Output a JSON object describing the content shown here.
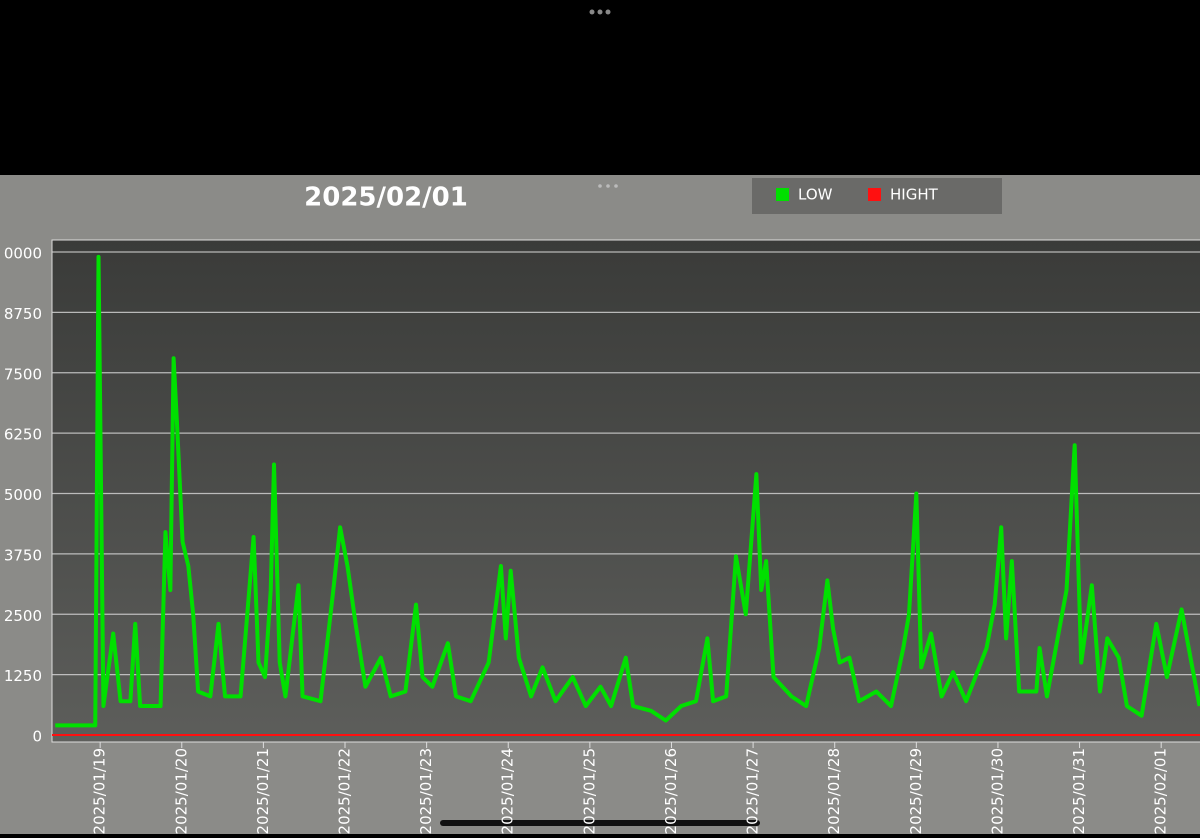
{
  "chart_data": {
    "type": "line",
    "title": "2025/02/01",
    "xlim": [
      -0.59,
      13.5
    ],
    "xticks": [
      {
        "value": 0,
        "label": "2025/01/19"
      },
      {
        "value": 1,
        "label": "2025/01/20"
      },
      {
        "value": 2,
        "label": "2025/01/21"
      },
      {
        "value": 3,
        "label": "2025/01/22"
      },
      {
        "value": 4,
        "label": "2025/01/23"
      },
      {
        "value": 5,
        "label": "2025/01/24"
      },
      {
        "value": 6,
        "label": "2025/01/25"
      },
      {
        "value": 7,
        "label": "2025/01/26"
      },
      {
        "value": 8,
        "label": "2025/01/27"
      },
      {
        "value": 9,
        "label": "2025/01/28"
      },
      {
        "value": 10,
        "label": "2025/01/29"
      },
      {
        "value": 11,
        "label": "2025/01/30"
      },
      {
        "value": 12,
        "label": "2025/01/31"
      },
      {
        "value": 13,
        "label": "2025/02/01"
      }
    ],
    "ylim": [
      0,
      10000
    ],
    "yticks": [
      0,
      1250,
      2500,
      3750,
      5000,
      6250,
      7500,
      8750,
      {
        "value": 10000,
        "label": "0000"
      }
    ],
    "grid": true,
    "legend": "top",
    "series": [
      {
        "name": "LOW",
        "color": "#00e000",
        "x": [
          -0.55,
          -0.06,
          -0.02,
          0.04,
          0.16,
          0.25,
          0.37,
          0.43,
          0.49,
          0.74,
          0.8,
          0.86,
          0.9,
          0.94,
          1.01,
          1.08,
          1.14,
          1.2,
          1.35,
          1.45,
          1.53,
          1.72,
          1.88,
          1.94,
          2.02,
          2.09,
          2.13,
          2.2,
          2.27,
          2.43,
          2.48,
          2.7,
          2.85,
          2.94,
          3.03,
          3.13,
          3.25,
          3.44,
          3.56,
          3.74,
          3.87,
          3.95,
          4.07,
          4.26,
          4.36,
          4.54,
          4.76,
          4.91,
          4.97,
          5.03,
          5.13,
          5.28,
          5.42,
          5.58,
          5.79,
          5.95,
          6.13,
          6.26,
          6.44,
          6.53,
          6.75,
          6.93,
          7.12,
          7.3,
          7.44,
          7.51,
          7.67,
          7.79,
          7.91,
          8.04,
          8.1,
          8.16,
          8.25,
          8.47,
          8.65,
          8.81,
          8.91,
          8.98,
          9.06,
          9.18,
          9.3,
          9.51,
          9.69,
          9.84,
          9.91,
          10.0,
          10.06,
          10.18,
          10.31,
          10.45,
          10.61,
          10.86,
          10.96,
          11.04,
          11.1,
          11.17,
          11.26,
          11.47,
          11.51,
          11.6,
          11.84,
          11.94,
          12.02,
          12.15,
          12.25,
          12.34,
          12.48,
          12.58,
          12.76,
          12.94,
          13.07,
          13.25,
          13.37,
          13.47
        ],
        "values": [
          200,
          200,
          9900,
          600,
          2100,
          700,
          700,
          2300,
          600,
          600,
          4200,
          3000,
          7800,
          6500,
          4000,
          3500,
          2500,
          900,
          800,
          2300,
          800,
          800,
          4100,
          1500,
          1200,
          3000,
          5600,
          1500,
          800,
          3100,
          800,
          700,
          2900,
          4300,
          3500,
          2300,
          1000,
          1600,
          800,
          900,
          2700,
          1200,
          1000,
          1900,
          800,
          700,
          1500,
          3500,
          2000,
          3400,
          1600,
          800,
          1400,
          700,
          1200,
          600,
          1000,
          600,
          1600,
          600,
          500,
          300,
          600,
          700,
          2000,
          700,
          800,
          3700,
          2500,
          5400,
          3000,
          3600,
          1200,
          800,
          600,
          1800,
          3200,
          2200,
          1500,
          1600,
          700,
          900,
          600,
          1800,
          2500,
          5000,
          1400,
          2100,
          800,
          1300,
          700,
          1800,
          2700,
          4300,
          2000,
          3600,
          900,
          900,
          1800,
          800,
          3000,
          6000,
          1500,
          3100,
          900,
          2000,
          1600,
          600,
          400,
          2300,
          1200,
          2600,
          1500,
          600
        ]
      },
      {
        "name": "HIGHT",
        "color": "#ff1010",
        "x": [
          -0.59,
          13.5
        ],
        "values": [
          0,
          0
        ]
      }
    ]
  }
}
